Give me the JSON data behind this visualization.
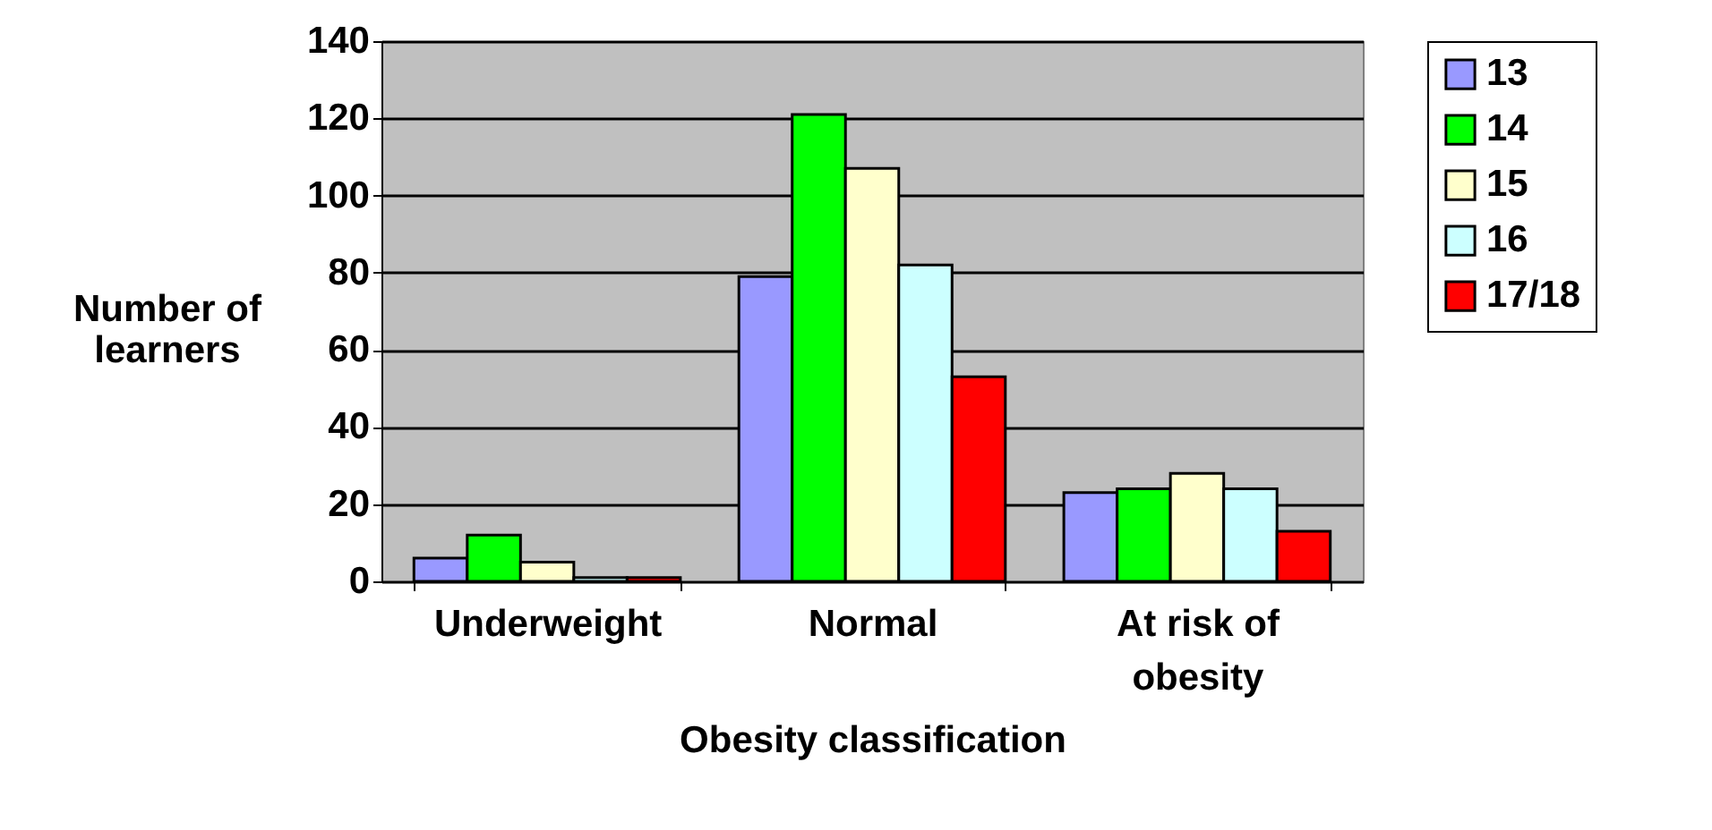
{
  "chart_data": {
    "type": "bar",
    "xlabel": "Obesity classification",
    "ylabel": "Number of learners",
    "categories": [
      "Underweight",
      "Normal",
      "At risk of obesity"
    ],
    "series": [
      {
        "name": "13",
        "color": "#9999ff",
        "values": [
          6,
          79,
          23
        ]
      },
      {
        "name": "14",
        "color": "#00ff00",
        "values": [
          12,
          121,
          24
        ]
      },
      {
        "name": "15",
        "color": "#ffffcc",
        "values": [
          5,
          107,
          28
        ]
      },
      {
        "name": "16",
        "color": "#ccffff",
        "values": [
          1,
          82,
          24
        ]
      },
      {
        "name": "17/18",
        "color": "#ff0000",
        "values": [
          1,
          53,
          13
        ]
      }
    ],
    "ylim": [
      0,
      140
    ],
    "yticks": [
      0,
      20,
      40,
      60,
      80,
      100,
      120,
      140
    ],
    "grid": "y",
    "legend": "right"
  }
}
